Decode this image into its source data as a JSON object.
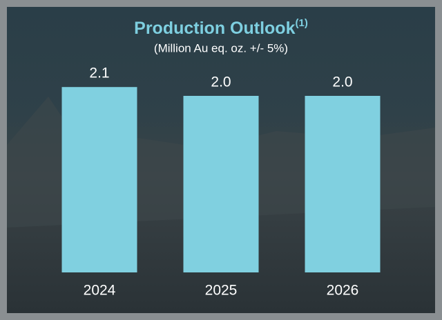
{
  "chart_data": {
    "type": "bar",
    "title": "Production Outlook",
    "title_note": "(1)",
    "subtitle": "(Million Au eq. oz. +/- 5%)",
    "categories": [
      "2024",
      "2025",
      "2026"
    ],
    "values": [
      2.1,
      2.0,
      2.0
    ],
    "value_labels": [
      "2.1",
      "2.0",
      "2.0"
    ],
    "color": "#80d0e0"
  }
}
